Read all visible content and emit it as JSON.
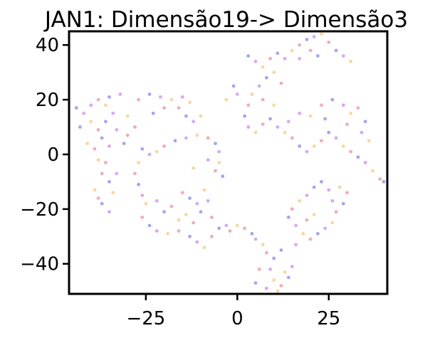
{
  "chart_data": {
    "type": "scatter",
    "title": "JAN1: Dimensão19-> Dimensão3",
    "xlabel": "",
    "ylabel": "",
    "xlim": [
      -46,
      41
    ],
    "ylim": [
      -51,
      45
    ],
    "x_ticks": [
      {
        "value": -25,
        "label": "−25"
      },
      {
        "value": 0,
        "label": "0"
      },
      {
        "value": 25,
        "label": "25"
      }
    ],
    "y_ticks": [
      {
        "value": 40,
        "label": "40"
      },
      {
        "value": 20,
        "label": "20"
      },
      {
        "value": 0,
        "label": "0"
      },
      {
        "value": -20,
        "label": "−20"
      },
      {
        "value": -40,
        "label": "−40"
      }
    ],
    "grid": false,
    "legend": "none",
    "point_colors": [
      "#3b2ff7",
      "#a63df2",
      "#f5a623",
      "#e8445a"
    ],
    "series": [
      {
        "values": [
          [
            -44,
            17
          ],
          [
            -42,
            15
          ],
          [
            -40,
            12
          ],
          [
            -38,
            9
          ],
          [
            -36,
            12
          ],
          [
            -34,
            15
          ],
          [
            -36,
            18
          ],
          [
            -38,
            20
          ],
          [
            -35,
            21
          ],
          [
            -32,
            22
          ],
          [
            -41,
            4
          ],
          [
            -39,
            2
          ],
          [
            -37,
            6
          ],
          [
            -33,
            9
          ],
          [
            -30,
            14
          ],
          [
            -27,
            20
          ],
          [
            -24,
            22
          ],
          [
            -21,
            21
          ],
          [
            -18,
            20
          ],
          [
            -16,
            17
          ],
          [
            -14,
            14
          ],
          [
            -12,
            12
          ],
          [
            -10,
            14
          ],
          [
            -20,
            17
          ],
          [
            -23,
            15
          ],
          [
            -15,
            21
          ],
          [
            -13,
            19
          ],
          [
            -28,
            10
          ],
          [
            -31,
            4
          ],
          [
            -35,
            3
          ],
          [
            -38,
            -2
          ],
          [
            -37,
            -7
          ],
          [
            -35,
            -10
          ],
          [
            -33,
            -7
          ],
          [
            -39,
            -13
          ],
          [
            -38,
            -16
          ],
          [
            -37,
            -18
          ],
          [
            -35,
            -21
          ],
          [
            -34,
            -14
          ],
          [
            -36,
            -3
          ],
          [
            -26,
            2
          ],
          [
            -24,
            0
          ],
          [
            -22,
            1
          ],
          [
            -20,
            3
          ],
          [
            -17,
            5
          ],
          [
            -14,
            6
          ],
          [
            -11,
            7
          ],
          [
            -8,
            6
          ],
          [
            -6,
            4
          ],
          [
            -5,
            1
          ],
          [
            -5,
            -3
          ],
          [
            -6,
            -6
          ],
          [
            -4,
            -8
          ],
          [
            -8,
            -2
          ],
          [
            -27,
            -3
          ],
          [
            -28,
            -7
          ],
          [
            -27,
            -11
          ],
          [
            -26,
            -15
          ],
          [
            -25,
            -18
          ],
          [
            -26,
            -23
          ],
          [
            -24,
            -26
          ],
          [
            -22,
            -28
          ],
          [
            -19,
            -29
          ],
          [
            -16,
            -28
          ],
          [
            -13,
            -30
          ],
          [
            -11,
            -32
          ],
          [
            -9,
            -34
          ],
          [
            -7,
            -30
          ],
          [
            -5,
            -27
          ],
          [
            -3,
            -26
          ],
          [
            0,
            -26
          ],
          [
            2,
            -27
          ],
          [
            4,
            -29
          ],
          [
            5,
            -31
          ],
          [
            7,
            -33
          ],
          [
            8,
            -36
          ],
          [
            10,
            -38
          ],
          [
            9,
            -42
          ],
          [
            10,
            -46
          ],
          [
            12,
            -48
          ],
          [
            14,
            -45
          ],
          [
            15,
            -41
          ],
          [
            13,
            -43
          ],
          [
            6,
            -42
          ],
          [
            5,
            -47
          ],
          [
            8,
            -49
          ],
          [
            11,
            -50
          ],
          [
            -15,
            -14
          ],
          [
            -13,
            -16
          ],
          [
            -11,
            -18
          ],
          [
            -14,
            -22
          ],
          [
            -12,
            -25
          ],
          [
            -10,
            -21
          ],
          [
            -8,
            -17
          ],
          [
            -9,
            -13
          ],
          [
            -18,
            -19
          ],
          [
            -20,
            -21
          ],
          [
            -22,
            -17
          ],
          [
            -16,
            -24
          ],
          [
            -7,
            -23
          ],
          [
            3,
            36
          ],
          [
            5,
            34
          ],
          [
            7,
            32
          ],
          [
            9,
            35
          ],
          [
            11,
            37
          ],
          [
            13,
            35
          ],
          [
            15,
            38
          ],
          [
            17,
            40
          ],
          [
            19,
            42
          ],
          [
            21,
            43
          ],
          [
            23,
            44
          ],
          [
            25,
            41
          ],
          [
            27,
            38
          ],
          [
            29,
            36
          ],
          [
            31,
            34
          ],
          [
            20,
            38
          ],
          [
            22,
            36
          ],
          [
            17,
            35
          ],
          [
            10,
            30
          ],
          [
            12,
            26
          ],
          [
            8,
            28
          ],
          [
            6,
            25
          ],
          [
            4,
            22
          ],
          [
            3,
            18
          ],
          [
            2,
            14
          ],
          [
            3,
            10
          ],
          [
            5,
            8
          ],
          [
            7,
            11
          ],
          [
            9,
            13
          ],
          [
            11,
            10
          ],
          [
            13,
            8
          ],
          [
            15,
            6
          ],
          [
            17,
            3
          ],
          [
            19,
            1
          ],
          [
            21,
            3
          ],
          [
            23,
            5
          ],
          [
            25,
            8
          ],
          [
            27,
            6
          ],
          [
            29,
            3
          ],
          [
            31,
            1
          ],
          [
            33,
            -1
          ],
          [
            35,
            -3
          ],
          [
            37,
            -6
          ],
          [
            39,
            -9
          ],
          [
            40,
            -10
          ],
          [
            17,
            15
          ],
          [
            20,
            14
          ],
          [
            23,
            18
          ],
          [
            26,
            20
          ],
          [
            29,
            18
          ],
          [
            31,
            15
          ],
          [
            33,
            17
          ],
          [
            35,
            12
          ],
          [
            34,
            8
          ],
          [
            36,
            5
          ],
          [
            30,
            11
          ],
          [
            24,
            13
          ],
          [
            14,
            12
          ],
          [
            10,
            18
          ],
          [
            7,
            20
          ],
          [
            23,
            -10
          ],
          [
            25,
            -13
          ],
          [
            28,
            -12
          ],
          [
            30,
            -14
          ],
          [
            21,
            -12
          ],
          [
            19,
            -15
          ],
          [
            17,
            -17
          ],
          [
            15,
            -20
          ],
          [
            14,
            -23
          ],
          [
            16,
            -26
          ],
          [
            18,
            -29
          ],
          [
            20,
            -31
          ],
          [
            22,
            -29
          ],
          [
            24,
            -27
          ],
          [
            26,
            -25
          ],
          [
            27,
            -21
          ],
          [
            29,
            -18
          ],
          [
            26,
            -17
          ],
          [
            21,
            -22
          ],
          [
            19,
            -24
          ],
          [
            -1,
            25
          ],
          [
            0,
            22
          ],
          [
            -3,
            20
          ],
          [
            -30,
            7
          ],
          [
            -43,
            10
          ],
          [
            -40,
            18
          ],
          [
            -12,
            -5
          ],
          [
            -2,
            -28
          ],
          [
            12,
            -35
          ],
          [
            16,
            -33
          ]
        ]
      }
    ]
  }
}
